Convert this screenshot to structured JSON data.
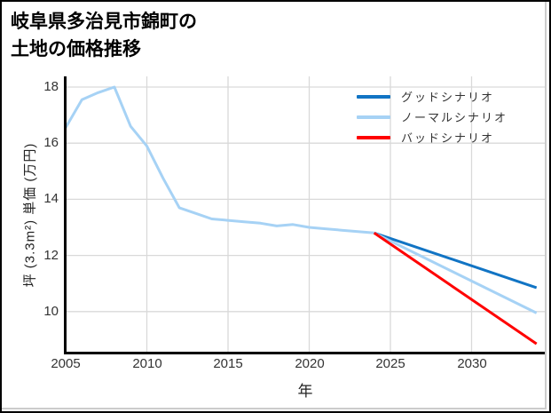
{
  "title": {
    "line1": "岐阜県多治見市錦町の",
    "line2": "土地の価格推移"
  },
  "chart_data": {
    "type": "line",
    "title": "岐阜県多治見市錦町の土地の価格推移",
    "xlabel": "年",
    "ylabel": "坪 (3.3m²) 単価 (万円)",
    "x_ticks": [
      2005,
      2010,
      2015,
      2020,
      2025,
      2030
    ],
    "y_ticks": [
      18,
      16,
      14,
      12,
      10
    ],
    "xlim": [
      2005,
      2034.5
    ],
    "ylim": [
      8.5,
      18.4
    ],
    "grid": true,
    "legend_position": "upper right",
    "series": [
      {
        "name": "グッドシナリオ",
        "color": "#1174c4",
        "x": [
          2024,
          2034
        ],
        "values": [
          12.8,
          10.85
        ]
      },
      {
        "name": "ノーマルシナリオ",
        "color": "#a6d2f5",
        "x": [
          2005,
          2006,
          2007,
          2008,
          2009,
          2010,
          2011,
          2012,
          2013,
          2014,
          2015,
          2016,
          2017,
          2018,
          2019,
          2020,
          2021,
          2022,
          2023,
          2024,
          2034
        ],
        "values": [
          16.55,
          17.55,
          17.8,
          18.0,
          16.6,
          15.9,
          14.75,
          13.7,
          13.5,
          13.3,
          13.25,
          13.2,
          13.15,
          13.05,
          13.1,
          13.0,
          12.95,
          12.9,
          12.85,
          12.8,
          9.95
        ]
      },
      {
        "name": "バッドシナリオ",
        "color": "#ff0000",
        "x": [
          2024,
          2034
        ],
        "values": [
          12.8,
          8.85
        ]
      }
    ]
  }
}
